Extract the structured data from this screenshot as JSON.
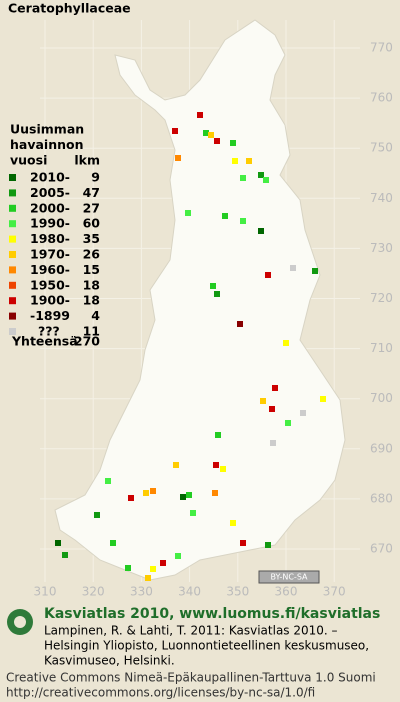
{
  "title": "Ceratophyllaceae",
  "legend": {
    "heading": [
      "Uusimman",
      "havainnon",
      "vuosi"
    ],
    "count_heading": "lkm",
    "rows": [
      {
        "label": "2010-",
        "count": 9,
        "color": "#006600"
      },
      {
        "label": "2005-",
        "count": 47,
        "color": "#119911"
      },
      {
        "label": "2000-",
        "count": 27,
        "color": "#22cc22"
      },
      {
        "label": "1990-",
        "count": 60,
        "color": "#44ee44"
      },
      {
        "label": "1980-",
        "count": 35,
        "color": "#ffff00"
      },
      {
        "label": "1970-",
        "count": 26,
        "color": "#ffcc00"
      },
      {
        "label": "1960-",
        "count": 15,
        "color": "#ff8800"
      },
      {
        "label": "1950-",
        "count": 18,
        "color": "#ee4400"
      },
      {
        "label": "1900-",
        "count": 18,
        "color": "#cc0000"
      },
      {
        "label": "-1899",
        "count": 4,
        "color": "#880000"
      },
      {
        "label": "???",
        "count": 11,
        "color": "#cccccc"
      }
    ],
    "total_label": "Yhteensä",
    "total": 270
  },
  "grid": {
    "y_labels": [
      "770",
      "760",
      "750",
      "740",
      "730",
      "720",
      "710",
      "700",
      "690",
      "680",
      "670"
    ],
    "x_labels": [
      "310",
      "320",
      "330",
      "340",
      "350",
      "360",
      "370"
    ]
  },
  "license_badge": "BY-NC-SA",
  "footer": {
    "site": "Kasviatlas 2010, www.luomus.fi/kasviatlas",
    "citation": [
      "Lampinen, R. & Lahti, T. 2011: Kasviatlas 2010. –",
      "Helsingin Yliopisto, Luonnontieteellinen keskusmuseo,",
      "Kasvimuseo, Helsinki."
    ],
    "license": [
      "Creative Commons Nimeä-Epäkaupallinen-Tarttuva 1.0 Suomi",
      "http://creativecommons.org/licenses/by-nc-sa/1.0/fi"
    ]
  }
}
